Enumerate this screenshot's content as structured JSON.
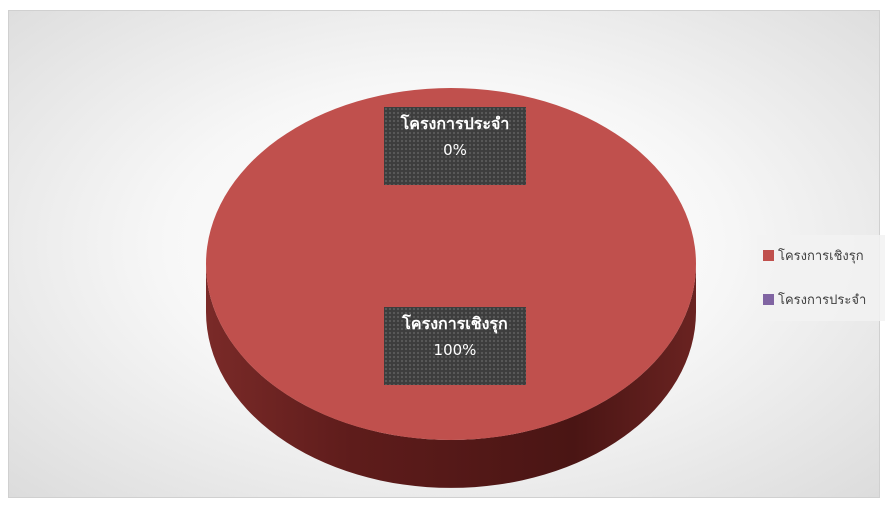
{
  "chart_data": {
    "type": "pie",
    "style": "3d",
    "categories": [
      "โครงการเชิงรุก",
      "โครงการประจำ"
    ],
    "values": [
      100,
      0
    ],
    "value_labels": [
      "100%",
      "0%"
    ],
    "colors": [
      "#c0504d",
      "#8064a2"
    ],
    "legend": {
      "position": "right",
      "items": [
        "โครงการเชิงรุก",
        "โครงการประจำ"
      ]
    }
  }
}
